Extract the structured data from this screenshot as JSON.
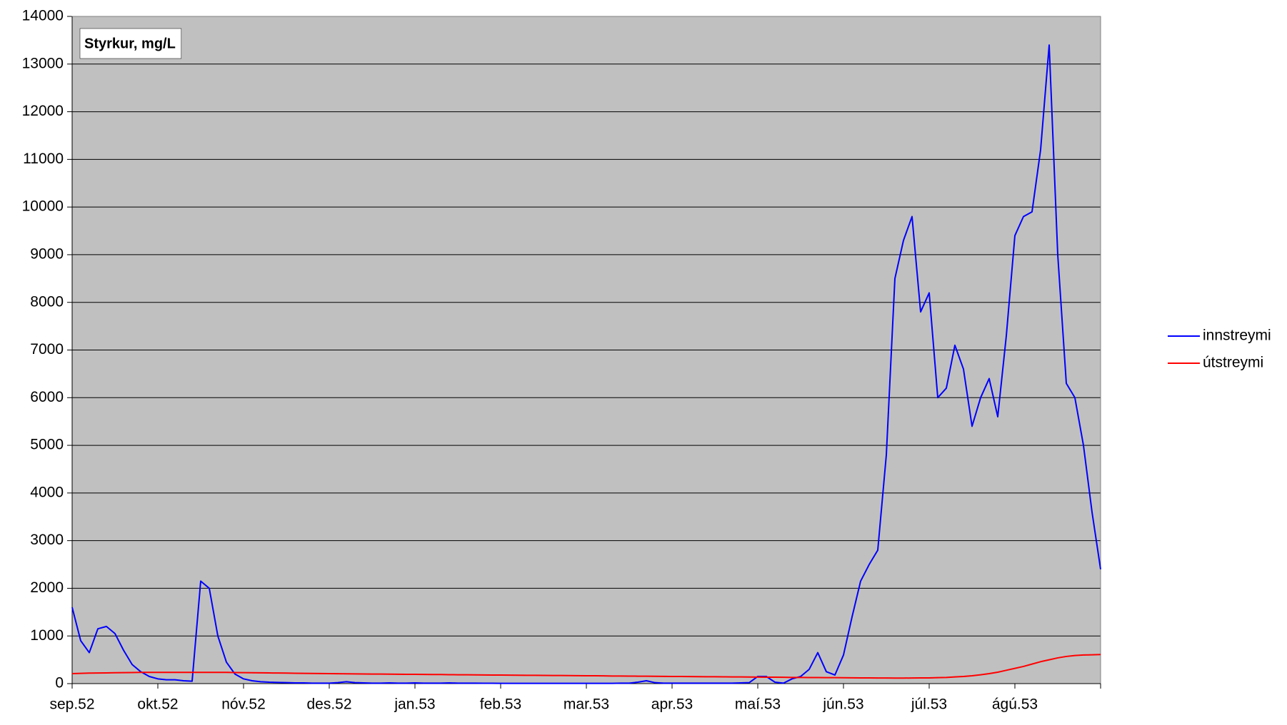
{
  "chart_data": {
    "type": "line",
    "title": "Styrkur, mg/L",
    "categories": [
      "sep.52",
      null,
      null,
      null,
      null,
      null,
      null,
      null,
      null,
      null,
      "okt.52",
      null,
      null,
      null,
      null,
      null,
      null,
      null,
      null,
      null,
      "nóv.52",
      null,
      null,
      null,
      null,
      null,
      null,
      null,
      null,
      null,
      "des.52",
      null,
      null,
      null,
      null,
      null,
      null,
      null,
      null,
      null,
      "jan.53",
      null,
      null,
      null,
      null,
      null,
      null,
      null,
      null,
      null,
      "feb.53",
      null,
      null,
      null,
      null,
      null,
      null,
      null,
      null,
      null,
      "mar.53",
      null,
      null,
      null,
      null,
      null,
      null,
      null,
      null,
      null,
      "apr.53",
      null,
      null,
      null,
      null,
      null,
      null,
      null,
      null,
      null,
      "maí.53",
      null,
      null,
      null,
      null,
      null,
      null,
      null,
      null,
      null,
      "jún.53",
      null,
      null,
      null,
      null,
      null,
      null,
      null,
      null,
      null,
      "júl.53",
      null,
      null,
      null,
      null,
      null,
      null,
      null,
      null,
      null,
      "ágú.53",
      null,
      null,
      null,
      null,
      null,
      null,
      null,
      null,
      null,
      null
    ],
    "series": [
      {
        "name": "innstreymi",
        "color": "#0000ff",
        "values": [
          1600,
          900,
          650,
          1150,
          1200,
          1050,
          700,
          400,
          250,
          150,
          100,
          80,
          80,
          60,
          50,
          2150,
          2000,
          1000,
          450,
          200,
          100,
          60,
          40,
          30,
          25,
          20,
          15,
          15,
          10,
          10,
          10,
          20,
          40,
          20,
          15,
          10,
          10,
          15,
          10,
          10,
          15,
          10,
          10,
          10,
          15,
          10,
          10,
          10,
          8,
          8,
          5,
          5,
          5,
          5,
          5,
          5,
          5,
          5,
          5,
          5,
          5,
          5,
          5,
          5,
          10,
          10,
          30,
          60,
          20,
          10,
          10,
          10,
          10,
          10,
          10,
          10,
          10,
          10,
          15,
          20,
          150,
          150,
          30,
          10,
          100,
          150,
          300,
          650,
          250,
          180,
          600,
          1400,
          2150,
          2500,
          2800,
          4800,
          8500,
          9300,
          9800,
          7800,
          8200,
          6000,
          6200,
          7100,
          6600,
          5400,
          6000,
          6400,
          5600,
          7300,
          9400,
          9800,
          9900,
          11200,
          13400,
          9000,
          6300,
          6000,
          5000,
          3600,
          2400
        ]
      },
      {
        "name": "útstreymi",
        "color": "#ff0000",
        "values": [
          210,
          215,
          220,
          222,
          225,
          228,
          230,
          232,
          235,
          235,
          235,
          235,
          235,
          235,
          235,
          235,
          235,
          235,
          235,
          232,
          230,
          228,
          226,
          224,
          222,
          220,
          218,
          216,
          214,
          212,
          210,
          208,
          206,
          204,
          202,
          200,
          200,
          198,
          196,
          195,
          194,
          192,
          190,
          190,
          188,
          186,
          185,
          184,
          182,
          180,
          180,
          178,
          176,
          175,
          174,
          172,
          170,
          170,
          168,
          166,
          165,
          164,
          162,
          160,
          160,
          158,
          156,
          155,
          154,
          152,
          150,
          150,
          148,
          146,
          145,
          144,
          142,
          140,
          140,
          138,
          136,
          135,
          134,
          132,
          130,
          130,
          128,
          128,
          126,
          125,
          124,
          122,
          120,
          120,
          118,
          118,
          116,
          116,
          118,
          120,
          120,
          125,
          130,
          140,
          150,
          165,
          185,
          210,
          240,
          280,
          320,
          360,
          410,
          460,
          500,
          540,
          570,
          590,
          600,
          605,
          610
        ]
      }
    ],
    "ylim": [
      0,
      14000
    ],
    "yticks": [
      0,
      1000,
      2000,
      3000,
      4000,
      5000,
      6000,
      7000,
      8000,
      9000,
      10000,
      11000,
      12000,
      13000,
      14000
    ],
    "grid": true,
    "legend": "right"
  }
}
